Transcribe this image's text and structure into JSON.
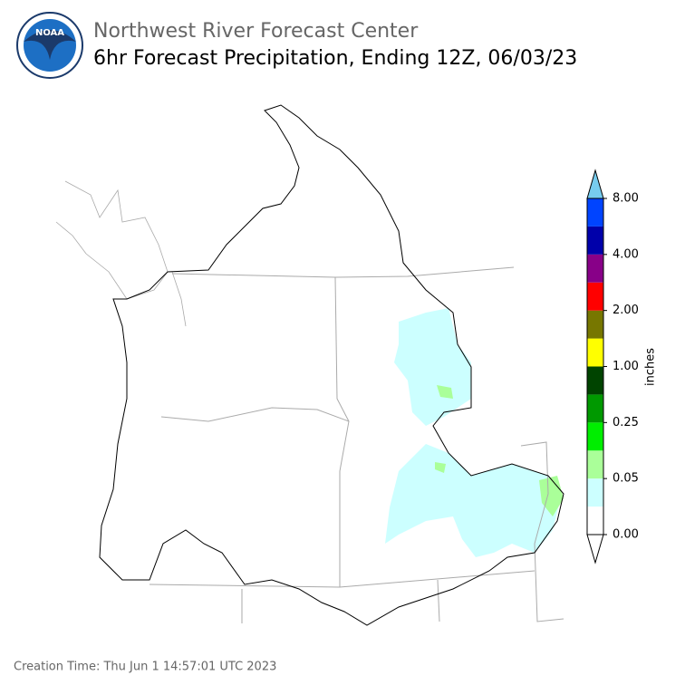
{
  "header": {
    "logo_text": "NOAA",
    "title": "Northwest River Forecast Center",
    "subtitle": "6hr Forecast Precipitation, Ending 12Z, 06/03/23"
  },
  "legend": {
    "label": "inches",
    "ticks": [
      "0.00",
      "0.05",
      "0.25",
      "1.00",
      "2.00",
      "4.00",
      "8.00"
    ],
    "colors": [
      "#ffffff",
      "#ccffff",
      "#aaff99",
      "#00ee00",
      "#009900",
      "#004400",
      "#ffff00",
      "#777700",
      "#ff0000",
      "#880088",
      "#0000aa",
      "#0044ff"
    ],
    "over_color": "#77ccee"
  },
  "footer": {
    "creation": "Creation Time: Thu Jun 1 14:57:01 UTC 2023"
  }
}
